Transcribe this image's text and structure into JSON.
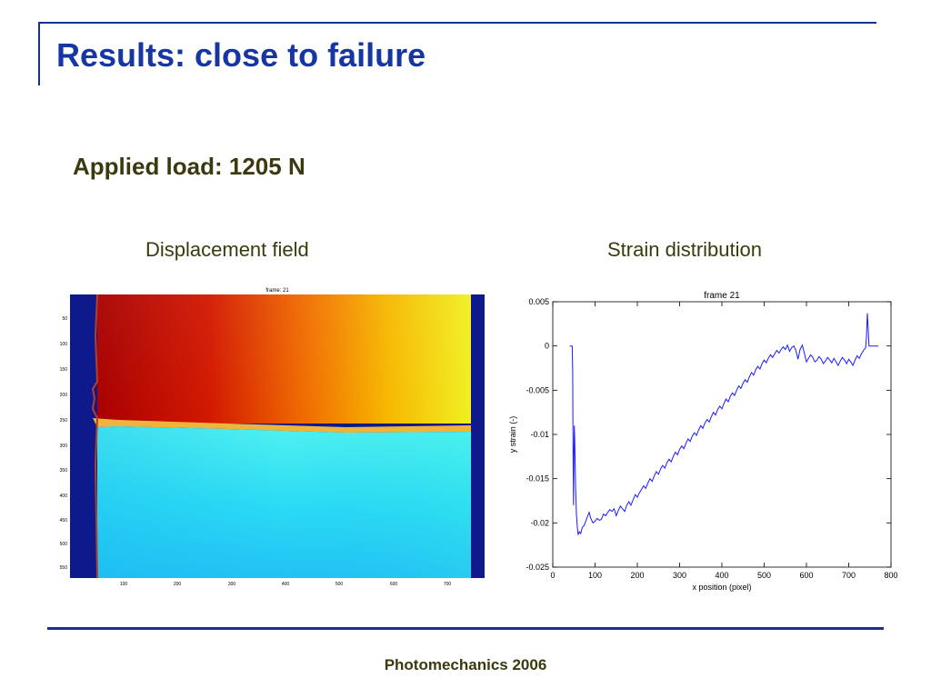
{
  "slide": {
    "title": "Results: close to failure",
    "subtitle": "Applied load: 1205 N",
    "footer": "Photomechanics 2006",
    "colors": {
      "accent": "#1a2f8f",
      "title": "#1636a3",
      "text": "#3b3a0f"
    }
  },
  "displacement": {
    "caption": "Displacement field",
    "plot_title": "frame: 21",
    "y_ticks": [
      "50",
      "100",
      "150",
      "200",
      "250",
      "300",
      "350",
      "400",
      "450",
      "500",
      "550"
    ],
    "x_ticks": [
      "100",
      "200",
      "300",
      "400",
      "500",
      "600",
      "700"
    ]
  },
  "strain": {
    "caption": "Strain distribution"
  },
  "chart_data": {
    "type": "line",
    "title": "frame 21",
    "xlabel": "x position (pixel)",
    "ylabel": "y strain (-)",
    "xlim": [
      0,
      800
    ],
    "ylim": [
      -0.025,
      0.005
    ],
    "x_ticks": [
      "0",
      "100",
      "200",
      "300",
      "400",
      "500",
      "600",
      "700",
      "800"
    ],
    "y_ticks": [
      "0.005",
      "0",
      "-0.005",
      "-0.01",
      "-0.015",
      "-0.02",
      "-0.025"
    ],
    "grid": false,
    "series": [
      {
        "color": "#1a1aff",
        "points": [
          [
            40,
            0
          ],
          [
            46,
            0
          ],
          [
            47,
            -0.003
          ],
          [
            48,
            -0.012
          ],
          [
            49,
            -0.018
          ],
          [
            50,
            -0.012
          ],
          [
            51,
            -0.009
          ],
          [
            52,
            -0.011
          ],
          [
            54,
            -0.016
          ],
          [
            56,
            -0.019
          ],
          [
            58,
            -0.0205
          ],
          [
            60,
            -0.0213
          ],
          [
            63,
            -0.021
          ],
          [
            66,
            -0.0212
          ],
          [
            70,
            -0.0205
          ],
          [
            74,
            -0.0203
          ],
          [
            78,
            -0.0198
          ],
          [
            82,
            -0.0193
          ],
          [
            86,
            -0.0188
          ],
          [
            90,
            -0.0195
          ],
          [
            95,
            -0.02
          ],
          [
            100,
            -0.0198
          ],
          [
            105,
            -0.0195
          ],
          [
            110,
            -0.0197
          ],
          [
            115,
            -0.0196
          ],
          [
            120,
            -0.019
          ],
          [
            125,
            -0.0192
          ],
          [
            130,
            -0.0188
          ],
          [
            135,
            -0.0185
          ],
          [
            140,
            -0.0187
          ],
          [
            145,
            -0.0184
          ],
          [
            150,
            -0.0192
          ],
          [
            155,
            -0.0186
          ],
          [
            160,
            -0.0181
          ],
          [
            165,
            -0.0184
          ],
          [
            170,
            -0.0187
          ],
          [
            175,
            -0.018
          ],
          [
            180,
            -0.0176
          ],
          [
            185,
            -0.018
          ],
          [
            190,
            -0.0174
          ],
          [
            195,
            -0.0168
          ],
          [
            200,
            -0.0171
          ],
          [
            205,
            -0.0166
          ],
          [
            210,
            -0.0162
          ],
          [
            215,
            -0.0158
          ],
          [
            220,
            -0.0161
          ],
          [
            225,
            -0.0155
          ],
          [
            230,
            -0.015
          ],
          [
            235,
            -0.0153
          ],
          [
            240,
            -0.0147
          ],
          [
            245,
            -0.0142
          ],
          [
            250,
            -0.0145
          ],
          [
            255,
            -0.0139
          ],
          [
            260,
            -0.0135
          ],
          [
            265,
            -0.0138
          ],
          [
            270,
            -0.0132
          ],
          [
            275,
            -0.0128
          ],
          [
            280,
            -0.0131
          ],
          [
            285,
            -0.0125
          ],
          [
            290,
            -0.012
          ],
          [
            295,
            -0.0123
          ],
          [
            300,
            -0.0117
          ],
          [
            305,
            -0.0113
          ],
          [
            310,
            -0.0116
          ],
          [
            315,
            -0.011
          ],
          [
            320,
            -0.0105
          ],
          [
            325,
            -0.0108
          ],
          [
            330,
            -0.0102
          ],
          [
            335,
            -0.0098
          ],
          [
            340,
            -0.0101
          ],
          [
            345,
            -0.0095
          ],
          [
            350,
            -0.009
          ],
          [
            355,
            -0.0093
          ],
          [
            360,
            -0.0087
          ],
          [
            365,
            -0.0083
          ],
          [
            370,
            -0.0086
          ],
          [
            375,
            -0.008
          ],
          [
            380,
            -0.0075
          ],
          [
            385,
            -0.0078
          ],
          [
            390,
            -0.0072
          ],
          [
            395,
            -0.0068
          ],
          [
            400,
            -0.0071
          ],
          [
            405,
            -0.0065
          ],
          [
            410,
            -0.006
          ],
          [
            415,
            -0.0063
          ],
          [
            420,
            -0.0057
          ],
          [
            425,
            -0.0053
          ],
          [
            430,
            -0.0056
          ],
          [
            435,
            -0.005
          ],
          [
            440,
            -0.0045
          ],
          [
            445,
            -0.0048
          ],
          [
            450,
            -0.0042
          ],
          [
            455,
            -0.0038
          ],
          [
            460,
            -0.0041
          ],
          [
            465,
            -0.0035
          ],
          [
            470,
            -0.003
          ],
          [
            475,
            -0.0033
          ],
          [
            480,
            -0.0027
          ],
          [
            485,
            -0.0023
          ],
          [
            490,
            -0.0026
          ],
          [
            495,
            -0.002
          ],
          [
            500,
            -0.0016
          ],
          [
            505,
            -0.0019
          ],
          [
            510,
            -0.0014
          ],
          [
            515,
            -0.001
          ],
          [
            520,
            -0.0013
          ],
          [
            525,
            -0.0009
          ],
          [
            530,
            -0.0005
          ],
          [
            535,
            -0.0008
          ],
          [
            540,
            -0.0004
          ],
          [
            545,
            -0.0001
          ],
          [
            550,
            -0.0004
          ],
          [
            555,
            0.0001
          ],
          [
            560,
            -0.0006
          ],
          [
            565,
            -0.0002
          ],
          [
            570,
            0.0
          ],
          [
            575,
            -0.0005
          ],
          [
            580,
            -0.0015
          ],
          [
            585,
            -0.0004
          ],
          [
            590,
            0.0001
          ],
          [
            595,
            -0.0008
          ],
          [
            600,
            -0.0018
          ],
          [
            605,
            -0.0014
          ],
          [
            610,
            -0.001
          ],
          [
            615,
            -0.0013
          ],
          [
            620,
            -0.0018
          ],
          [
            625,
            -0.0016
          ],
          [
            630,
            -0.0012
          ],
          [
            635,
            -0.0015
          ],
          [
            640,
            -0.002
          ],
          [
            645,
            -0.0017
          ],
          [
            650,
            -0.0013
          ],
          [
            655,
            -0.0016
          ],
          [
            660,
            -0.0019
          ],
          [
            665,
            -0.0014
          ],
          [
            670,
            -0.0018
          ],
          [
            675,
            -0.0022
          ],
          [
            680,
            -0.0017
          ],
          [
            685,
            -0.0013
          ],
          [
            690,
            -0.0016
          ],
          [
            695,
            -0.002
          ],
          [
            700,
            -0.0015
          ],
          [
            705,
            -0.0018
          ],
          [
            710,
            -0.0022
          ],
          [
            715,
            -0.0016
          ],
          [
            720,
            -0.0011
          ],
          [
            725,
            -0.0014
          ],
          [
            730,
            -0.0009
          ],
          [
            735,
            -0.0005
          ],
          [
            740,
            -0.0002
          ],
          [
            742,
            0.001
          ],
          [
            744,
            0.0037
          ],
          [
            746,
            0.002
          ],
          [
            748,
            0
          ],
          [
            770,
            0
          ]
        ]
      }
    ]
  }
}
